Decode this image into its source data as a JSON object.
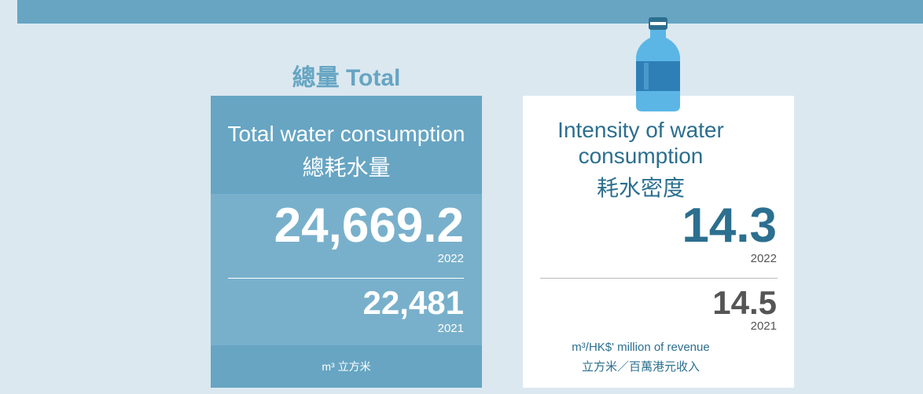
{
  "left": {
    "heading": "總量 Total",
    "title_en": "Total water consumption",
    "title_zh": "總耗水量",
    "current": {
      "value": "24,669.2",
      "year": "2022"
    },
    "previous": {
      "value": "22,481",
      "year": "2021"
    },
    "unit": "m³ 立方米"
  },
  "right": {
    "title_en_1": "Intensity of water",
    "title_en_2": "consumption",
    "title_zh": "耗水密度",
    "current": {
      "value": "14.3",
      "year": "2022"
    },
    "previous": {
      "value": "14.5",
      "year": "2021"
    },
    "unit_en": "m³/HK$' million of revenue",
    "unit_zh": "立方米／百萬港元收入"
  }
}
